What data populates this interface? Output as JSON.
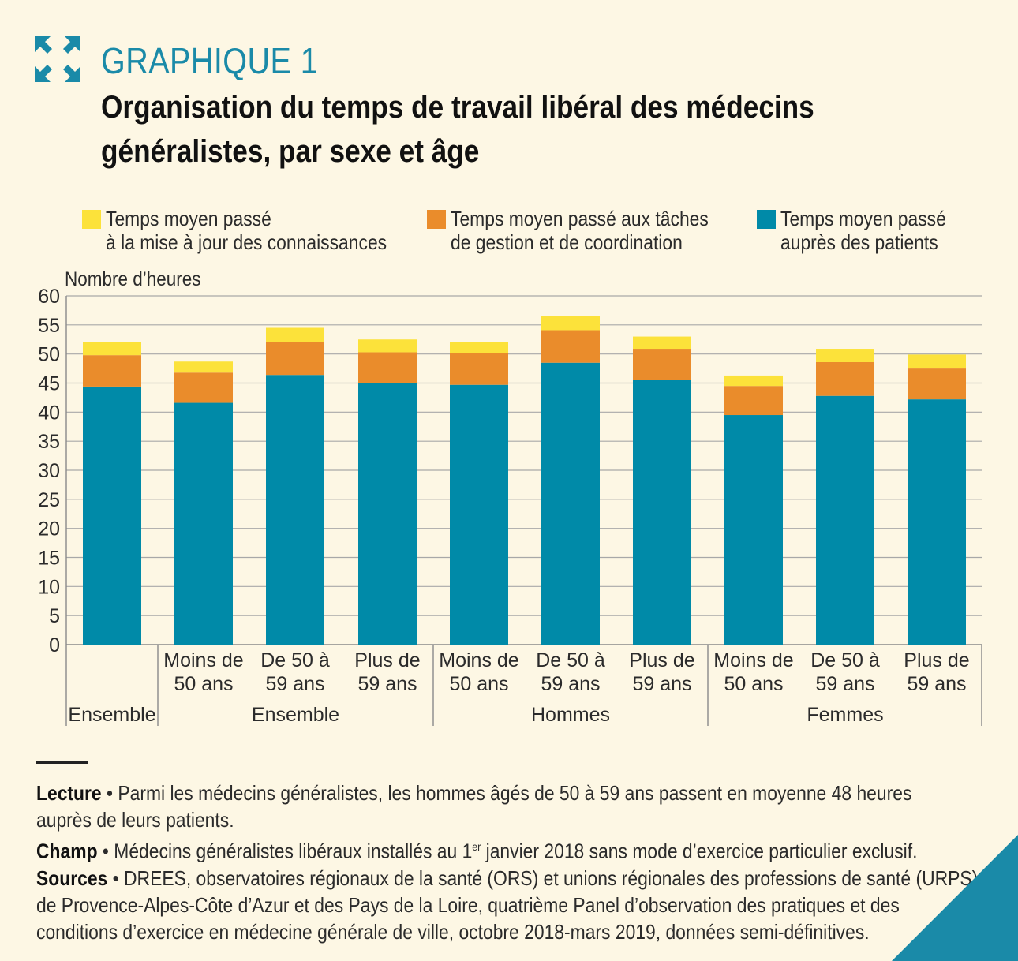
{
  "header": {
    "label": "GRAPHIQUE 1",
    "title_line1": "Organisation du temps de travail libéral des médecins",
    "title_line2": "généralistes, par sexe et âge",
    "icon": "expand-arrows-icon"
  },
  "colors": {
    "patients": "#008aa8",
    "gestion": "#ea8c2b",
    "connaissances": "#fce23a",
    "accent": "#1a8aa8",
    "background": "#fdf7e4",
    "grid": "#a8a8a8"
  },
  "chart_data": {
    "type": "bar",
    "stacked": true,
    "title": "Organisation du temps de travail libéral des médecins généralistes, par sexe et âge",
    "ylabel": "Nombre d’heures",
    "ylim": [
      0,
      60
    ],
    "yticks": [
      "0",
      "5",
      "10",
      "15",
      "20",
      "25",
      "30",
      "35",
      "40",
      "45",
      "50",
      "55",
      "60"
    ],
    "categories": [
      "Ensemble",
      "Moins de 50 ans",
      "De 50 à 59 ans",
      "Plus de 59 ans",
      "Moins de 50 ans",
      "De 50 à 59 ans",
      "Plus de 59 ans",
      "Moins de 50 ans",
      "De 50 à 59 ans",
      "Plus de 59 ans"
    ],
    "category_lines": [
      [],
      [
        "Moins de",
        "50 ans"
      ],
      [
        "De 50 à",
        "59 ans"
      ],
      [
        "Plus de",
        "59 ans"
      ],
      [
        "Moins de",
        "50 ans"
      ],
      [
        "De 50 à",
        "59 ans"
      ],
      [
        "Plus de",
        "59 ans"
      ],
      [
        "Moins de",
        "50 ans"
      ],
      [
        "De 50 à",
        "59 ans"
      ],
      [
        "Plus de",
        "59 ans"
      ]
    ],
    "groups": [
      {
        "label": "Ensemble",
        "from": 0,
        "to": 0
      },
      {
        "label": "Ensemble",
        "from": 1,
        "to": 3
      },
      {
        "label": "Hommes",
        "from": 4,
        "to": 6
      },
      {
        "label": "Femmes",
        "from": 7,
        "to": 9
      }
    ],
    "series": [
      {
        "name": "Temps moyen passé auprès des patients",
        "color": "#008aa8",
        "values": [
          44.4,
          41.6,
          46.4,
          45.0,
          44.7,
          48.5,
          45.6,
          39.5,
          42.8,
          42.2
        ]
      },
      {
        "name": "Temps moyen passé aux tâches de gestion et de coordination",
        "color": "#ea8c2b",
        "values": [
          5.4,
          5.2,
          5.7,
          5.3,
          5.4,
          5.6,
          5.3,
          5.0,
          5.8,
          5.3
        ]
      },
      {
        "name": "Temps moyen passé à la mise à jour des connaissances",
        "color": "#fce23a",
        "values": [
          2.2,
          1.9,
          2.4,
          2.2,
          1.9,
          2.4,
          2.1,
          1.8,
          2.3,
          2.4
        ]
      }
    ]
  },
  "legend": [
    {
      "label": "Temps moyen passé\nà la mise à jour des connaissances",
      "color": "#fce23a"
    },
    {
      "label": "Temps moyen passé aux tâches\nde gestion et de coordination",
      "color": "#ea8c2b"
    },
    {
      "label": "Temps moyen passé\nauprès des patients",
      "color": "#008aa8"
    }
  ],
  "notes": {
    "lecture_label": "Lecture",
    "lecture_text": " • Parmi les médecins généralistes, les hommes âgés de 50 à 59 ans passent en moyenne 48 heures\nauprès de leurs patients.",
    "champ_label": "Champ",
    "champ_text_before": " • Médecins généralistes libéraux installés au 1",
    "champ_sup": "er",
    "champ_text_after": " janvier 2018 sans mode d’exercice particulier exclusif.",
    "sources_label": "Sources",
    "sources_text": " • DREES, observatoires régionaux de la santé (ORS) et unions régionales des professions de santé (URPS)\nde Provence-Alpes-Côte d’Azur et des Pays de la Loire, quatrième Panel d’observation des pratiques et des\nconditions d’exercice en médecine générale de ville, octobre 2018-mars 2019, données semi-définitives."
  }
}
